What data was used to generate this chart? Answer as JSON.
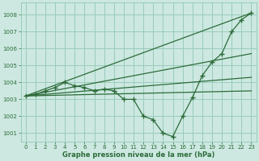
{
  "background_color": "#cce8e0",
  "grid_color": "#99ccbb",
  "line_color": "#2d6b3a",
  "xlabel": "Graphe pression niveau de la mer (hPa)",
  "ylim": [
    1000.5,
    1008.7
  ],
  "xlim": [
    -0.5,
    23.5
  ],
  "yticks": [
    1001,
    1002,
    1003,
    1004,
    1005,
    1006,
    1007,
    1008
  ],
  "xticks": [
    0,
    1,
    2,
    3,
    4,
    5,
    6,
    7,
    8,
    9,
    10,
    11,
    12,
    13,
    14,
    15,
    16,
    17,
    18,
    19,
    20,
    21,
    22,
    23
  ],
  "main_line": {
    "x": [
      0,
      1,
      2,
      3,
      4,
      5,
      6,
      7,
      8,
      9,
      10,
      11,
      12,
      13,
      14,
      15,
      16,
      17,
      18,
      19,
      20,
      21,
      22,
      23
    ],
    "y": [
      1003.2,
      1003.3,
      1003.5,
      1003.7,
      1004.0,
      1003.8,
      1003.7,
      1003.5,
      1003.6,
      1003.5,
      1003.0,
      1003.0,
      1002.0,
      1001.8,
      1001.0,
      1000.8,
      1002.0,
      1003.1,
      1004.4,
      1005.2,
      1005.7,
      1007.0,
      1007.7,
      1008.1
    ]
  },
  "fan_lines": [
    {
      "x": [
        0,
        23
      ],
      "y": [
        1003.2,
        1008.1
      ]
    },
    {
      "x": [
        0,
        23
      ],
      "y": [
        1003.2,
        1005.7
      ]
    },
    {
      "x": [
        0,
        23
      ],
      "y": [
        1003.2,
        1004.3
      ]
    },
    {
      "x": [
        0,
        23
      ],
      "y": [
        1003.2,
        1003.5
      ]
    }
  ]
}
